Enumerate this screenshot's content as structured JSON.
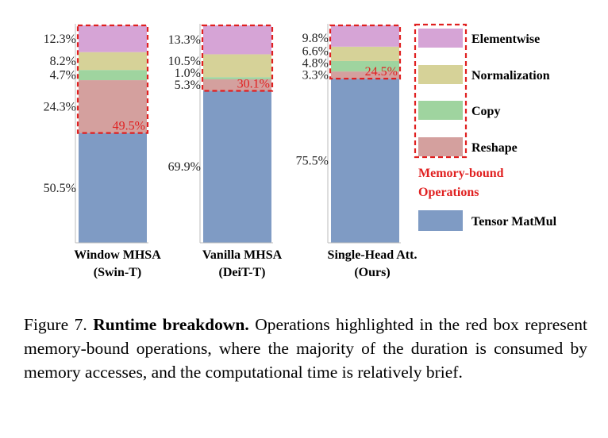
{
  "chart_data": {
    "type": "stacked-bar",
    "categories": [
      {
        "line1": "Window MHSA",
        "line2": "(Swin-T)"
      },
      {
        "line1": "Vanilla MHSA",
        "line2": "(DeiT-T)"
      },
      {
        "line1": "Single-Head Att.",
        "line2": "(Ours)"
      }
    ],
    "series": [
      {
        "name": "Tensor MatMul",
        "color": "#7f9bc4",
        "values": [
          50.5,
          69.9,
          75.5
        ]
      },
      {
        "name": "Reshape",
        "color": "#d4a09e",
        "values": [
          24.3,
          5.3,
          3.3
        ]
      },
      {
        "name": "Copy",
        "color": "#9fd49f",
        "values": [
          4.7,
          1.0,
          4.8
        ]
      },
      {
        "name": "Normalization",
        "color": "#d6d298",
        "values": [
          8.2,
          10.5,
          6.6
        ]
      },
      {
        "name": "Elementwise",
        "color": "#d6a4d6",
        "values": [
          12.3,
          13.3,
          9.8
        ]
      }
    ],
    "value_labels": [
      [
        "50.5%",
        "24.3%",
        "4.7%",
        "8.2%",
        "12.3%"
      ],
      [
        "69.9%",
        "5.3%",
        "1.0%",
        "10.5%",
        "13.3%"
      ],
      [
        "75.5%",
        "3.3%",
        "4.8%",
        "6.6%",
        "9.8%"
      ]
    ],
    "memory_bound_labels": [
      "49.5%",
      "30.1%",
      "24.5%"
    ],
    "legend": {
      "items": [
        "Elementwise",
        "Normalization",
        "Copy",
        "Reshape"
      ],
      "memory_bound_line1": "Memory-bound",
      "memory_bound_line2": "Operations",
      "matmul": "Tensor MatMul",
      "red_color": "#e02020"
    },
    "ylim": [
      0,
      100
    ]
  },
  "caption": {
    "prefix": "Figure 7.",
    "bold": "Runtime breakdown.",
    "text": "Operations highlighted in the red box represent memory-bound operations, where the majority of the duration is consumed by memory accesses, and the computational time is relatively brief."
  }
}
